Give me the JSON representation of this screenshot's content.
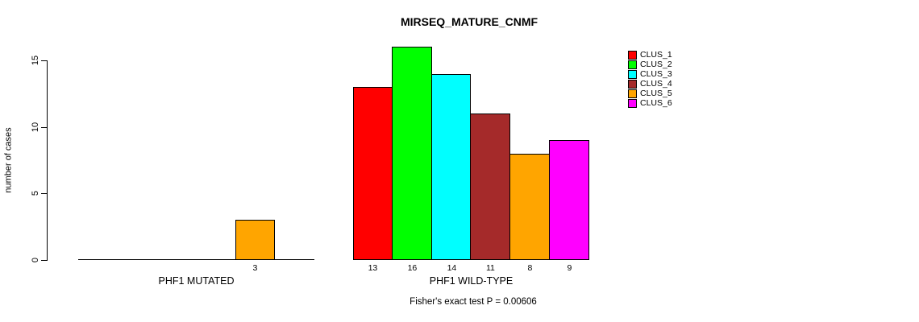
{
  "chart_data": {
    "type": "bar",
    "title": "MIRSEQ_MATURE_CNMF",
    "subtitle": "Fisher's exact test P = 0.00606",
    "ylabel": "number of cases",
    "axis": {
      "ticks": [
        0,
        5,
        10,
        15
      ],
      "tick_labels": [
        "0",
        "5",
        "10",
        "15"
      ],
      "ylim": [
        0,
        15
      ],
      "grid": false
    },
    "legend": {
      "position": "right",
      "entries": [
        {
          "label": "CLUS_1",
          "color": "#FF0000"
        },
        {
          "label": "CLUS_2",
          "color": "#00FF00"
        },
        {
          "label": "CLUS_3",
          "color": "#00FFFF"
        },
        {
          "label": "CLUS_4",
          "color": "#A52A2A"
        },
        {
          "label": "CLUS_5",
          "color": "#FFA500"
        },
        {
          "label": "CLUS_6",
          "color": "#FF00FF"
        }
      ]
    },
    "groups": [
      {
        "label": "PHF1 MUTATED",
        "values": [
          0,
          0,
          0,
          0,
          3,
          0
        ],
        "bar_labels": [
          "",
          "",
          "",
          "",
          "3",
          ""
        ]
      },
      {
        "label": "PHF1 WILD-TYPE",
        "values": [
          13,
          16,
          14,
          11,
          8,
          9
        ],
        "bar_labels": [
          "13",
          "16",
          "14",
          "11",
          "8",
          "9"
        ]
      }
    ],
    "colors": [
      "#FF0000",
      "#00FF00",
      "#00FFFF",
      "#A52A2A",
      "#FFA500",
      "#FF00FF"
    ]
  }
}
